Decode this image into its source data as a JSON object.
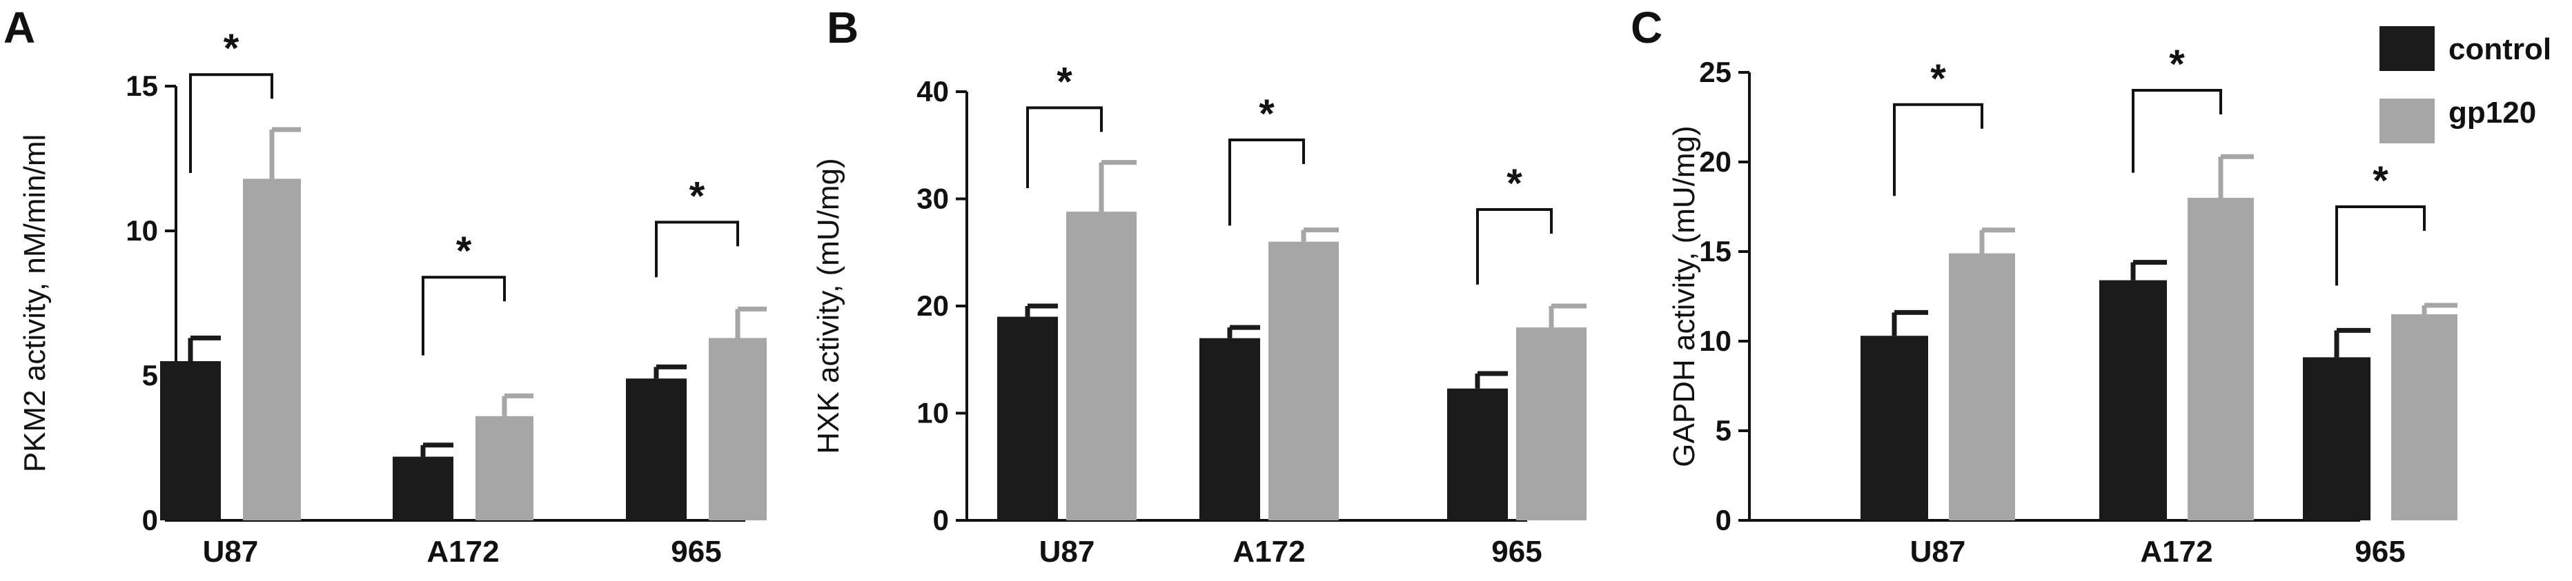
{
  "chart_data": [
    {
      "type": "bar",
      "panel_label": "A",
      "ylabel": "PKM2 activity, nM/min/ml",
      "categories": [
        "U87",
        "A172",
        "965"
      ],
      "ylim": [
        0,
        15
      ],
      "yticks": [
        0,
        5,
        10,
        15
      ],
      "series": [
        {
          "name": "control",
          "values": [
            5.5,
            2.2,
            4.9
          ],
          "errors": [
            0.8,
            0.4,
            0.4
          ]
        },
        {
          "name": "gp120",
          "values": [
            11.8,
            3.6,
            6.3
          ],
          "errors": [
            1.7,
            0.7,
            1.0
          ]
        }
      ],
      "significance": [
        "*",
        "*",
        "*"
      ],
      "sig_bracket_y": [
        15.4,
        8.4,
        10.3
      ],
      "sig_bracket_left_bottom": [
        12.0,
        5.7,
        8.4
      ]
    },
    {
      "type": "bar",
      "panel_label": "B",
      "ylabel": "HXK activity, (mU/mg)",
      "categories": [
        "U87",
        "A172",
        "965"
      ],
      "ylim": [
        0,
        40
      ],
      "yticks": [
        0,
        10,
        20,
        30,
        40
      ],
      "series": [
        {
          "name": "control",
          "values": [
            19.0,
            17.0,
            12.3
          ],
          "errors": [
            1.0,
            1.0,
            1.4
          ]
        },
        {
          "name": "gp120",
          "values": [
            28.8,
            26.0,
            18.0
          ],
          "errors": [
            4.6,
            1.1,
            2.0
          ]
        }
      ],
      "significance": [
        "*",
        "*",
        "*"
      ],
      "sig_bracket_y": [
        38.5,
        35.5,
        29.0
      ],
      "sig_bracket_left_bottom": [
        31.0,
        27.5,
        22.0
      ]
    },
    {
      "type": "bar",
      "panel_label": "C",
      "ylabel": "GAPDH activity, (mU/mg)",
      "categories": [
        "U87",
        "A172",
        "965"
      ],
      "ylim": [
        0,
        25
      ],
      "yticks": [
        0,
        5,
        10,
        15,
        20,
        25
      ],
      "series": [
        {
          "name": "control",
          "values": [
            10.3,
            13.4,
            9.1
          ],
          "errors": [
            1.3,
            1.0,
            1.5
          ]
        },
        {
          "name": "gp120",
          "values": [
            14.9,
            18.0,
            11.5
          ],
          "errors": [
            1.3,
            2.3,
            0.5
          ]
        }
      ],
      "significance": [
        "*",
        "*",
        "*"
      ],
      "sig_bracket_y": [
        23.2,
        24.0,
        17.5
      ],
      "sig_bracket_left_bottom": [
        18.1,
        19.4,
        13.1
      ]
    }
  ],
  "legend": {
    "position": "top-right",
    "items": [
      {
        "label": "control",
        "color": "#1a1a1a"
      },
      {
        "label": "gp120",
        "color": "#a6a6a6"
      }
    ]
  },
  "colors": {
    "control": "#1a1a1a",
    "gp120": "#a6a6a6",
    "axis": "#111111"
  }
}
